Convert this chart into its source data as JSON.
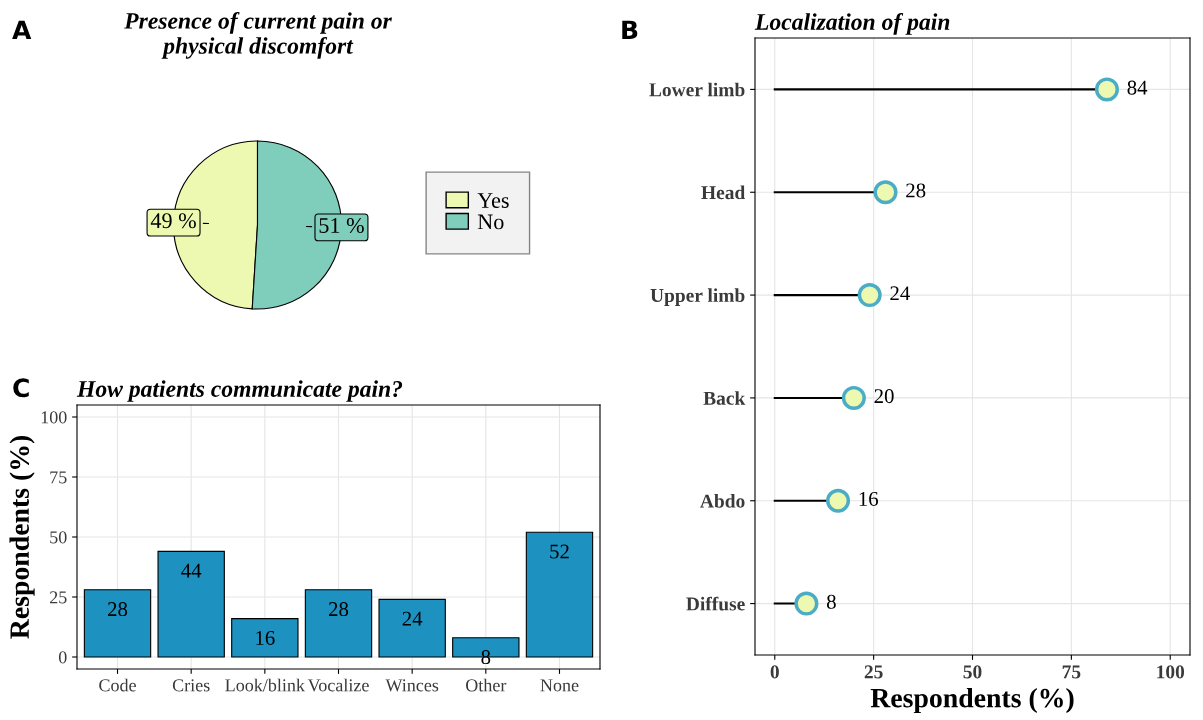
{
  "chart_data": [
    {
      "type": "pie",
      "title": "Presence of current pain or\nphysical discomfort",
      "annotations": [
        "A"
      ],
      "categories": [
        "Yes",
        "No"
      ],
      "values": [
        49,
        51
      ],
      "colors": [
        "#edf8b1",
        "#7fcdbb"
      ],
      "value_labels": [
        "49 %",
        "51 %"
      ],
      "legend": "right"
    },
    {
      "type": "lollipop",
      "title": "Localization of pain",
      "annotations": [
        "B"
      ],
      "orientation": "horizontal",
      "categories": [
        "Lower limb",
        "Head",
        "Upper limb",
        "Back",
        "Abdo",
        "Diffuse"
      ],
      "values": [
        84,
        28,
        24,
        20,
        16,
        8
      ],
      "color": "#edf8b1",
      "xlim": [
        -5,
        105
      ],
      "xticks": [
        0,
        25,
        50,
        75,
        100
      ],
      "xlabel": "Respondents (%)",
      "grid": true,
      "data_labels": true,
      "marker": "circle"
    },
    {
      "type": "bar",
      "title": "How patients communicate pain?",
      "annotations": [
        "C"
      ],
      "categories": [
        "Code",
        "Cries",
        "Look/blink",
        "Vocalize",
        "Winces",
        "Other",
        "None"
      ],
      "values": [
        28,
        44,
        16,
        28,
        24,
        8,
        52
      ],
      "color": "#1d91c0",
      "ylim": [
        -5,
        105
      ],
      "yticks": [
        0,
        25,
        50,
        75,
        100
      ],
      "ylabel": "Respondents (%)",
      "grid": true,
      "data_labels": true
    }
  ]
}
